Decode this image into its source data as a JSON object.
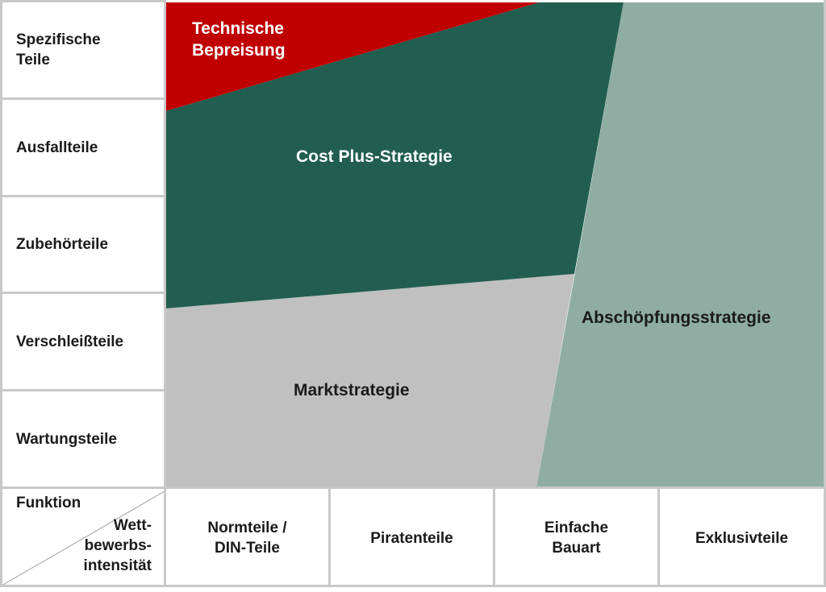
{
  "rows": [
    {
      "line1": "Spezifische",
      "line2": "Teile"
    },
    {
      "line1": "Ausfallteile",
      "line2": ""
    },
    {
      "line1": "Zubehörteile",
      "line2": ""
    },
    {
      "line1": "Verschleißteile",
      "line2": ""
    },
    {
      "line1": "Wartungsteile",
      "line2": ""
    }
  ],
  "columns": [
    {
      "line1": "Normteile /",
      "line2": "DIN-Teile"
    },
    {
      "line1": "Piratenteile",
      "line2": ""
    },
    {
      "line1": "Einfache",
      "line2": "Bauart"
    },
    {
      "line1": "Exklusivteile",
      "line2": ""
    }
  ],
  "corner": {
    "row_axis": "Funktion",
    "col_axis_line1": "Wett-",
    "col_axis_line2": "bewerbs-",
    "col_axis_line3": "intensität"
  },
  "regions": {
    "technical": {
      "line1": "Technische",
      "line2": "Bepreisung",
      "color": "#c00000"
    },
    "cost_plus": {
      "label": "Cost Plus-Strategie",
      "color": "#215e4f"
    },
    "market": {
      "label": "Marktstrategie",
      "color": "#c0c0c0"
    },
    "skimming": {
      "label": "Abschöpfungsstrategie",
      "color": "#8fada3"
    }
  }
}
